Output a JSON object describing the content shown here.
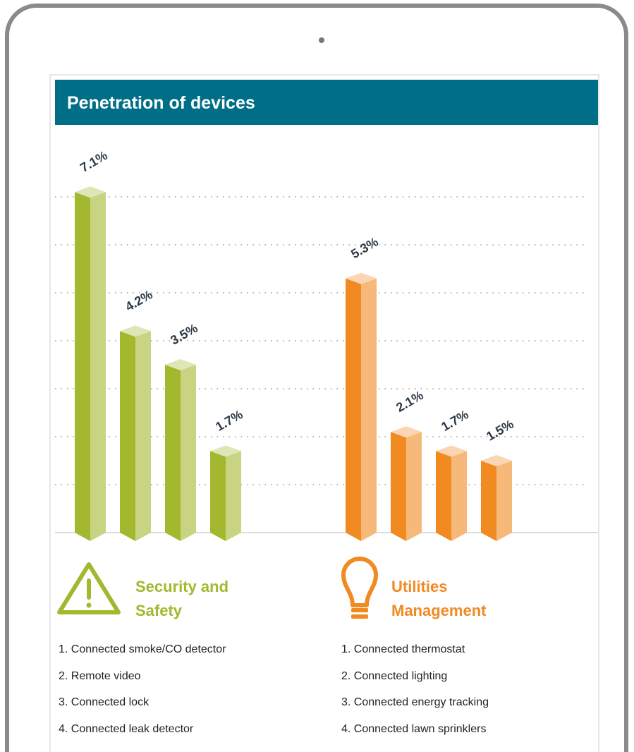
{
  "chart_data": {
    "type": "bar",
    "title": "Penetration of devices",
    "ylim": [
      0,
      7.5
    ],
    "yticks": [
      1,
      2,
      3,
      4,
      5,
      6,
      7
    ],
    "grid": true,
    "groups": [
      {
        "name": "Security and Safety",
        "color": "#a3b82e",
        "icon": "warning",
        "items": [
          "1. Connected smoke/CO detector",
          "2. Remote video",
          "3. Connected lock",
          "4. Connected leak detector"
        ],
        "values": [
          7.1,
          4.2,
          3.5,
          1.7
        ],
        "value_labels": [
          "7.1%",
          "4.2%",
          "3.5%",
          "1.7%"
        ]
      },
      {
        "name": "Utilities Management",
        "color": "#f28a22",
        "icon": "bulb",
        "items": [
          "1. Connected thermostat",
          "2. Connected lighting",
          "3. Connected energy tracking",
          "4. Connected lawn sprinklers"
        ],
        "values": [
          5.3,
          2.1,
          1.7,
          1.5
        ],
        "value_labels": [
          "5.3%",
          "2.1%",
          "1.7%",
          "1.5%"
        ]
      }
    ]
  }
}
